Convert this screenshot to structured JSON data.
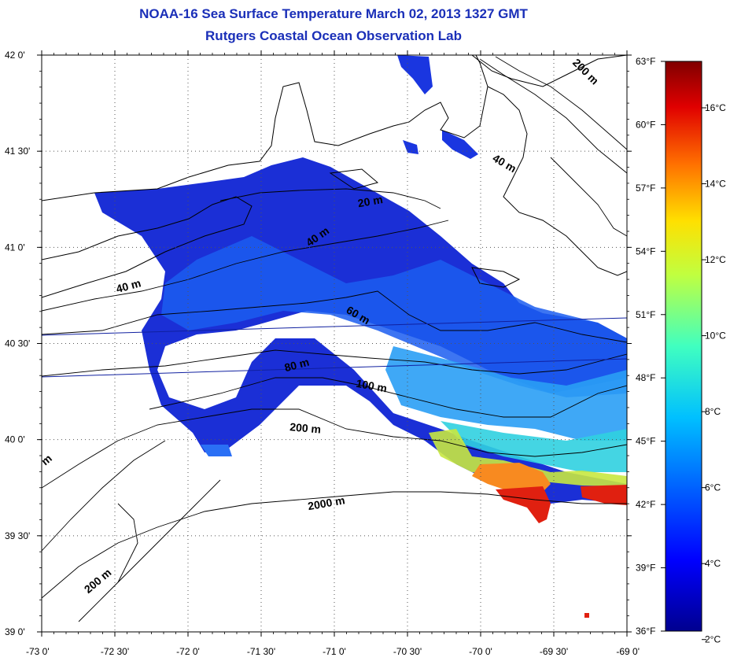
{
  "title": "NOAA-16 Sea Surface Temperature March 02, 2013 1327 GMT",
  "subtitle": "Rutgers Coastal Ocean Observation Lab",
  "lat_ticks": [
    {
      "value": 42.0,
      "label": "42 0'"
    },
    {
      "value": 41.5,
      "label": "41 30'"
    },
    {
      "value": 41.0,
      "label": "41 0'"
    },
    {
      "value": 40.5,
      "label": "40 30'"
    },
    {
      "value": 40.0,
      "label": "40 0'"
    },
    {
      "value": 39.5,
      "label": "39 30'"
    },
    {
      "value": 39.0,
      "label": "39 0'"
    }
  ],
  "lon_ticks": [
    {
      "value": -73.0,
      "label": "-73 0'"
    },
    {
      "value": -72.5,
      "label": "-72 30'"
    },
    {
      "value": -72.0,
      "label": "-72 0'"
    },
    {
      "value": -71.5,
      "label": "-71 30'"
    },
    {
      "value": -71.0,
      "label": "-71 0'"
    },
    {
      "value": -70.5,
      "label": "-70 30'"
    },
    {
      "value": -70.0,
      "label": "-70 0'"
    },
    {
      "value": -69.5,
      "label": "-69 30'"
    },
    {
      "value": -69.0,
      "label": "-69 0'"
    }
  ],
  "fahrenheit_ticks": [
    {
      "value": 63,
      "label": "63°F"
    },
    {
      "value": 60,
      "label": "60°F"
    },
    {
      "value": 57,
      "label": "57°F"
    },
    {
      "value": 54,
      "label": "54°F"
    },
    {
      "value": 51,
      "label": "51°F"
    },
    {
      "value": 48,
      "label": "48°F"
    },
    {
      "value": 45,
      "label": "45°F"
    },
    {
      "value": 42,
      "label": "42°F"
    },
    {
      "value": 39,
      "label": "39°F"
    },
    {
      "value": 36,
      "label": "36°F"
    }
  ],
  "celsius_ticks": [
    {
      "value": 16,
      "label": "16°C"
    },
    {
      "value": 14,
      "label": "14°C"
    },
    {
      "value": 12,
      "label": "12°C"
    },
    {
      "value": 10,
      "label": "10°C"
    },
    {
      "value": 8,
      "label": "8°C"
    },
    {
      "value": 6,
      "label": "6°C"
    },
    {
      "value": 4,
      "label": "4°C"
    },
    {
      "value": 2,
      "label": "2°C"
    }
  ],
  "contour_labels": [
    {
      "text": "200 m",
      "lon": -69.3,
      "lat": 41.9,
      "rot": 45
    },
    {
      "text": "40 m",
      "lon": -69.85,
      "lat": 41.42,
      "rot": 30
    },
    {
      "text": "20 m",
      "lon": -70.75,
      "lat": 41.22,
      "rot": -10
    },
    {
      "text": "40 m",
      "lon": -71.1,
      "lat": 41.04,
      "rot": -35
    },
    {
      "text": "40 m",
      "lon": -72.4,
      "lat": 40.78,
      "rot": -15
    },
    {
      "text": "60 m",
      "lon": -70.85,
      "lat": 40.63,
      "rot": 30
    },
    {
      "text": "80 m",
      "lon": -71.25,
      "lat": 40.37,
      "rot": -15
    },
    {
      "text": "100 m",
      "lon": -70.75,
      "lat": 40.26,
      "rot": 10
    },
    {
      "text": "200 m",
      "lon": -71.2,
      "lat": 40.04,
      "rot": 5
    },
    {
      "text": "2000 m",
      "lon": -71.05,
      "lat": 39.65,
      "rot": -10
    },
    {
      "text": "200 m",
      "lon": -72.6,
      "lat": 39.25,
      "rot": -40
    },
    {
      "text": "m",
      "lon": -72.95,
      "lat": 39.88,
      "rot": -40
    }
  ],
  "colors": {
    "title": "#1a2fb8",
    "colormap": [
      "#00008f",
      "#0000ff",
      "#0080ff",
      "#00ffff",
      "#80ff80",
      "#ffff00",
      "#ff8000",
      "#ff0000",
      "#800000"
    ]
  }
}
